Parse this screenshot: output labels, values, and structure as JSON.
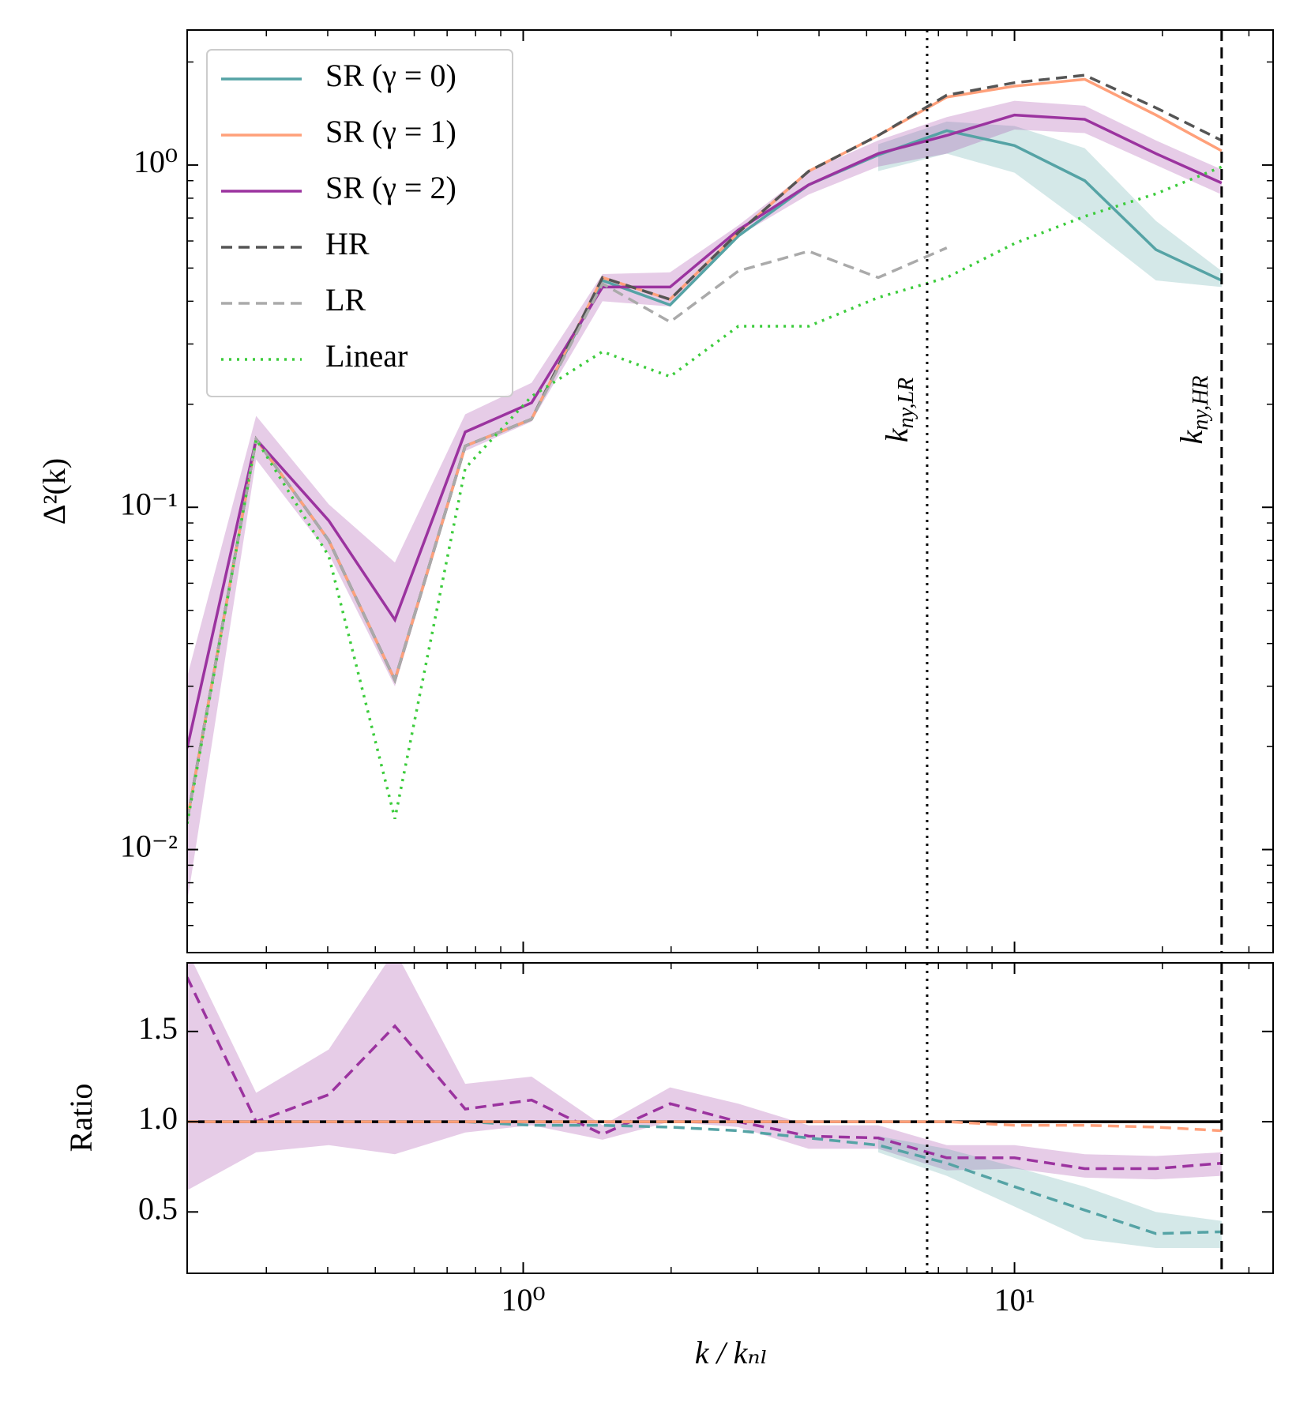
{
  "chart_data": [
    {
      "type": "line",
      "xscale": "log",
      "yscale": "log",
      "x": [
        0.207,
        0.286,
        0.402,
        0.548,
        0.762,
        1.04,
        1.45,
        1.99,
        2.74,
        3.81,
        5.28,
        7.28,
        10,
        13.9,
        19.4,
        26.4
      ],
      "xlim": [
        0.207,
        33.6
      ],
      "ylim": [
        0.005,
        2.48
      ],
      "yticks": [
        {
          "value": 0.01,
          "label": "10⁻²"
        },
        {
          "value": 0.1,
          "label": "10⁻¹"
        },
        {
          "value": 1,
          "label": "10⁰"
        }
      ],
      "yticks_minor": [
        0.006,
        0.007,
        0.008,
        0.009,
        0.02,
        0.03,
        0.04,
        0.05,
        0.06,
        0.07,
        0.08,
        0.09,
        0.2,
        0.3,
        0.4,
        0.5,
        0.6,
        0.7,
        0.8,
        0.9,
        2
      ],
      "xticks_minor": [
        0.3,
        0.4,
        0.5,
        0.6,
        0.7,
        0.8,
        0.9,
        2,
        3,
        4,
        5,
        6,
        7,
        8,
        9,
        20,
        30
      ],
      "ylabel": "Δ²(k)",
      "legend": "upper left",
      "series": [
        {
          "name": "SR (γ = 0)",
          "color": "#55a3a5",
          "dash": "solid",
          "values": [
            0.0122,
            0.158,
            0.08,
            0.0313,
            0.151,
            0.181,
            0.46,
            0.39,
            0.62,
            0.875,
            1.07,
            1.26,
            1.14,
            0.9,
            0.566,
            0.46
          ],
          "lower": [
            null,
            null,
            null,
            null,
            null,
            null,
            null,
            null,
            null,
            null,
            0.96,
            1.08,
            0.95,
            0.67,
            0.46,
            0.44
          ],
          "upper": [
            null,
            null,
            null,
            null,
            null,
            null,
            null,
            null,
            null,
            null,
            1.15,
            1.34,
            1.3,
            1.12,
            0.687,
            0.49
          ]
        },
        {
          "name": "SR (γ = 1)",
          "color": "#ffa07a",
          "dash": "solid",
          "values": [
            0.0122,
            0.158,
            0.08,
            0.0313,
            0.151,
            0.181,
            0.469,
            0.405,
            0.635,
            0.959,
            1.22,
            1.58,
            1.7,
            1.78,
            1.4,
            1.1
          ]
        },
        {
          "name": "SR (γ = 2)",
          "color": "#9b339f",
          "dash": "solid",
          "values": [
            0.0198,
            0.158,
            0.0914,
            0.0469,
            0.166,
            0.202,
            0.44,
            0.44,
            0.646,
            0.875,
            1.08,
            1.22,
            1.4,
            1.36,
            1.08,
            0.886
          ],
          "lower": [
            0.007,
            0.138,
            0.073,
            0.03,
            0.146,
            0.178,
            0.4,
            0.386,
            0.62,
            0.82,
            0.99,
            1.08,
            1.27,
            1.24,
            1.0,
            0.82
          ],
          "upper": [
            0.032,
            0.185,
            0.102,
            0.069,
            0.187,
            0.231,
            0.48,
            0.486,
            0.666,
            0.96,
            1.18,
            1.38,
            1.54,
            1.49,
            1.18,
            0.97
          ]
        },
        {
          "name": "HR",
          "color": "#555555",
          "dash": "dashed",
          "values": [
            0.0122,
            0.158,
            0.08,
            0.0313,
            0.151,
            0.181,
            0.469,
            0.405,
            0.635,
            0.959,
            1.22,
            1.6,
            1.74,
            1.83,
            1.47,
            1.18
          ]
        },
        {
          "name": "LR",
          "color": "#aaaaaa",
          "dash": "dashed",
          "values": [
            0.0122,
            0.158,
            0.08,
            0.0313,
            0.151,
            0.181,
            0.45,
            0.348,
            0.49,
            0.56,
            0.469,
            0.573,
            null,
            null,
            null,
            null
          ]
        },
        {
          "name": "Linear",
          "color": "#3ccc3c",
          "dash": "dotted",
          "values": [
            0.0119,
            0.158,
            0.072,
            0.0123,
            0.13,
            0.211,
            0.285,
            0.241,
            0.338,
            0.338,
            0.41,
            0.469,
            0.59,
            0.708,
            0.824,
            0.988
          ]
        }
      ],
      "vlines": [
        {
          "x": 6.64,
          "dash": "dotted",
          "label": "k",
          "sub": "ny,LR"
        },
        {
          "x": 26.4,
          "dash": "dashed",
          "label": "k",
          "sub": "ny,HR"
        }
      ]
    },
    {
      "type": "line",
      "xscale": "log",
      "yscale": "linear",
      "x": [
        0.207,
        0.286,
        0.402,
        0.548,
        0.762,
        1.04,
        1.45,
        1.99,
        2.74,
        3.81,
        5.28,
        7.28,
        10,
        13.9,
        19.4,
        26.4
      ],
      "xlim": [
        0.207,
        33.6
      ],
      "ylim": [
        0.16,
        1.88
      ],
      "yticks": [
        0.5,
        {
          "value": 1,
          "label": "1.0"
        },
        1.5
      ],
      "xticks": [
        {
          "value": 1,
          "label": "10⁰"
        },
        {
          "value": 10,
          "label": "10¹"
        }
      ],
      "xticks_minor": [
        0.3,
        0.4,
        0.5,
        0.6,
        0.7,
        0.8,
        0.9,
        2,
        3,
        4,
        5,
        6,
        7,
        8,
        9,
        20,
        30
      ],
      "ylabel": "Ratio",
      "xlabel": "k / kₙₗ",
      "series": [
        {
          "color": "#9b339f",
          "dash": "dashed",
          "band_only": true,
          "values": [
            1.8,
            1.0,
            1.15,
            1.53,
            1.07,
            1.12,
            0.93,
            1.1,
            1.0,
            0.92,
            0.91,
            0.8,
            0.8,
            0.74,
            0.74,
            0.77
          ],
          "lower": [
            0.62,
            0.83,
            0.87,
            0.82,
            0.94,
            0.98,
            0.9,
            1.0,
            0.97,
            0.85,
            0.85,
            0.73,
            0.74,
            0.69,
            0.68,
            0.7
          ],
          "upper": [
            1.95,
            1.16,
            1.4,
            1.95,
            1.21,
            1.25,
            0.98,
            1.19,
            1.1,
            0.98,
            0.98,
            0.87,
            0.87,
            0.82,
            0.81,
            0.83
          ]
        },
        {
          "color": "#55a3a5",
          "dash": "dashed",
          "values": [
            1,
            1,
            1,
            1,
            1,
            0.98,
            0.98,
            0.97,
            0.95,
            0.91,
            0.87,
            0.77,
            0.64,
            0.51,
            0.38,
            0.39
          ],
          "lower": [
            null,
            null,
            null,
            null,
            null,
            null,
            null,
            null,
            null,
            null,
            0.83,
            0.7,
            0.53,
            0.35,
            0.3,
            0.3
          ],
          "upper": [
            null,
            null,
            null,
            null,
            null,
            null,
            null,
            null,
            null,
            null,
            0.92,
            0.85,
            0.75,
            0.64,
            0.5,
            0.45
          ]
        },
        {
          "color": "#000000",
          "dash": "solid",
          "values": [
            1,
            1,
            1,
            1,
            1,
            1,
            1,
            1,
            1,
            1,
            1,
            1,
            1,
            1,
            1,
            1
          ]
        },
        {
          "color": "#ffa07a",
          "dash": "dashed",
          "values": [
            1,
            1,
            1,
            1,
            1,
            1,
            1,
            1,
            1,
            1,
            1,
            1,
            0.98,
            0.98,
            0.97,
            0.95
          ]
        }
      ]
    }
  ]
}
